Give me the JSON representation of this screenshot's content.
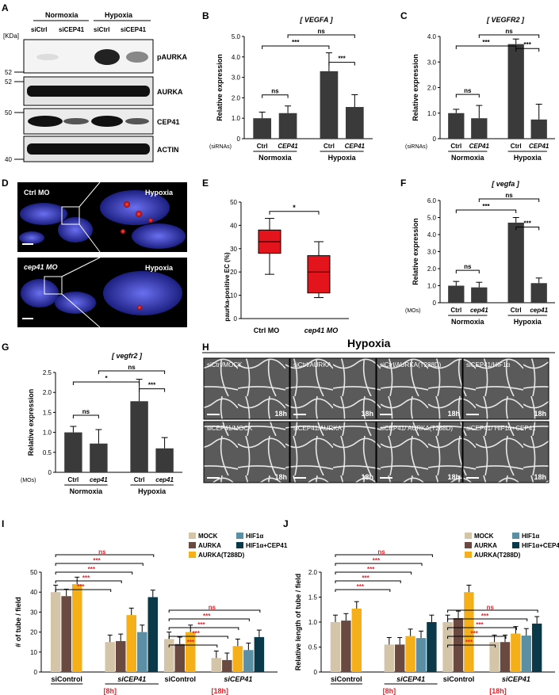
{
  "panels": {
    "A": "A",
    "B": "B",
    "C": "C",
    "D": "D",
    "E": "E",
    "F": "F",
    "G": "G",
    "H": "H",
    "I": "I",
    "J": "J"
  },
  "panelA": {
    "groups": [
      "Normoxia",
      "Hypoxia"
    ],
    "lanes": [
      "siCtrl",
      "siCEP41",
      "siCtrl",
      "siCEP41"
    ],
    "kda_label": "[KDa]",
    "markers": [
      "52",
      "52",
      "50",
      "40"
    ],
    "bands": [
      "pAURKA",
      "AURKA",
      "CEP41",
      "ACTIN"
    ]
  },
  "panelB": {
    "title": "[ VEGFA ]",
    "ylabel": "Relative expression",
    "ylim": [
      0,
      5
    ],
    "yticks": [
      "0",
      "1.0",
      "2.0",
      "3.0",
      "4.0",
      "5.0"
    ],
    "reagent": "(siRNAs)",
    "categories": [
      "Ctrl",
      "CEP41",
      "Ctrl",
      "CEP41"
    ],
    "groups": [
      "Normoxia",
      "Hypoxia"
    ],
    "values": [
      1.0,
      1.25,
      3.3,
      1.55
    ],
    "errors": [
      0.3,
      0.35,
      0.9,
      0.6
    ],
    "sig": [
      "ns",
      "***",
      "***",
      "ns"
    ]
  },
  "panelC": {
    "title": "[ VEGFR2 ]",
    "ylabel": "Relative expression",
    "ylim": [
      0,
      4
    ],
    "yticks": [
      "0",
      "1.0",
      "2.0",
      "3.0",
      "4.0"
    ],
    "reagent": "(siRNAs)",
    "categories": [
      "Ctrl",
      "CEP41",
      "Ctrl",
      "CEP41"
    ],
    "groups": [
      "Normoxia",
      "Hypoxia"
    ],
    "values": [
      1.0,
      0.8,
      3.7,
      0.75
    ],
    "errors": [
      0.15,
      0.5,
      0.2,
      0.6
    ],
    "sig": [
      "ns",
      "***",
      "***",
      "ns"
    ]
  },
  "panelD": {
    "top_label": "Ctrl MO",
    "bottom_label": "cep41 MO",
    "condition": "Hypoxia"
  },
  "panelE": {
    "ylabel": "paurka-positive EC (%)",
    "yticks": [
      "0",
      "10",
      "20",
      "30",
      "40",
      "50"
    ],
    "ylim": [
      0,
      50
    ],
    "categories": [
      "Ctrl MO",
      "cep41 MO"
    ],
    "boxes": [
      {
        "min": 19,
        "q1": 28,
        "median": 33,
        "q3": 38,
        "max": 43
      },
      {
        "min": 9,
        "q1": 11,
        "median": 20,
        "q3": 27,
        "max": 33
      }
    ],
    "sig": "*"
  },
  "panelF": {
    "title": "[ vegfa ]",
    "ylabel": "Relative expression",
    "ylim": [
      0,
      6
    ],
    "yticks": [
      "0",
      "1.0",
      "2.0",
      "3.0",
      "4.0",
      "5.0",
      "6.0"
    ],
    "reagent": "(MOs)",
    "categories": [
      "Ctrl",
      "cep41",
      "Ctrl",
      "cep41"
    ],
    "groups": [
      "Normoxia",
      "Hypoxia"
    ],
    "values": [
      1.0,
      0.9,
      4.7,
      1.15
    ],
    "errors": [
      0.25,
      0.3,
      0.3,
      0.3
    ],
    "sig": [
      "ns",
      "***",
      "***",
      "ns"
    ]
  },
  "panelG": {
    "title": "[ vegfr2 ]",
    "ylabel": "Relative expression",
    "ylim": [
      0,
      2.5
    ],
    "yticks": [
      "0",
      "0.5",
      "1.0",
      "1.5",
      "2.0",
      "2.5"
    ],
    "reagent": "(MOs)",
    "categories": [
      "Ctrl",
      "cep41",
      "Ctrl",
      "cep41"
    ],
    "groups": [
      "Normoxia",
      "Hypoxia"
    ],
    "values": [
      1.0,
      0.72,
      1.78,
      0.6
    ],
    "errors": [
      0.15,
      0.35,
      0.55,
      0.27
    ],
    "sig": [
      "ns",
      "*",
      "***",
      "ns"
    ]
  },
  "panelH": {
    "title": "Hypoxia",
    "time": "18h",
    "tiles": [
      "siCtrl/MOCK",
      "siCtrl/AURKA",
      "siCtrl/AURKA(T288D)",
      "siCEP41/HIF1α",
      "siCEP41/MOCK",
      "siCEP41/AURKA",
      "siCEP41/ AURKA(T288D)",
      "siCEP41/ HIF1α+CEP41"
    ]
  },
  "legend": {
    "items": [
      "MOCK",
      "HIF1α",
      "AURKA",
      "HIF1α+CEP41",
      "AURKA(T288D)"
    ]
  },
  "colors": {
    "mock": "#d4c4a8",
    "aurka": "#6a4a40",
    "t288d": "#f5b019",
    "hif": "#5b8fa3",
    "hifcep": "#0a3a4a",
    "red": "#e3232b"
  },
  "panelI": {
    "ylabel": "# of tube / field",
    "yticks": [
      "0",
      "10",
      "20",
      "30",
      "40",
      "50"
    ],
    "ylim": [
      0,
      50
    ],
    "groups": [
      "siControl",
      "siCEP41",
      "siControl",
      "siCEP41"
    ],
    "times": [
      "[8h]",
      "[18h]"
    ],
    "chart_data": {
      "type": "bar",
      "series": [
        {
          "name": "MOCK",
          "values": [
            40,
            15,
            16.5,
            7
          ]
        },
        {
          "name": "AURKA",
          "values": [
            38,
            15.5,
            14,
            6
          ]
        },
        {
          "name": "AURKA(T288D)",
          "values": [
            44,
            28.5,
            20,
            13
          ]
        },
        {
          "name": "HIF1α",
          "values": [
            null,
            20,
            null,
            11
          ]
        },
        {
          "name": "HIF1α+CEP41",
          "values": [
            null,
            37.5,
            null,
            17.5
          ]
        }
      ]
    }
  },
  "panelJ": {
    "ylabel": "Relative length of tube / field",
    "yticks": [
      "0",
      "0.5",
      "1.0",
      "1.5",
      "2.0"
    ],
    "ylim": [
      0,
      2
    ],
    "groups": [
      "siControl",
      "siCEP41",
      "siControl",
      "siCEP41"
    ],
    "times": [
      "[8h]",
      "[18h]"
    ],
    "chart_data": {
      "type": "bar",
      "series": [
        {
          "name": "MOCK",
          "values": [
            1.0,
            0.55,
            1.0,
            0.6
          ]
        },
        {
          "name": "AURKA",
          "values": [
            1.03,
            0.55,
            1.08,
            0.6
          ]
        },
        {
          "name": "AURKA(T288D)",
          "values": [
            1.27,
            0.72,
            1.6,
            0.77
          ]
        },
        {
          "name": "HIF1α",
          "values": [
            null,
            0.68,
            null,
            0.73
          ]
        },
        {
          "name": "HIF1α+CEP41",
          "values": [
            null,
            1.0,
            null,
            0.97
          ]
        }
      ]
    }
  },
  "sig": {
    "ns": "ns",
    "one": "*",
    "three": "***"
  }
}
